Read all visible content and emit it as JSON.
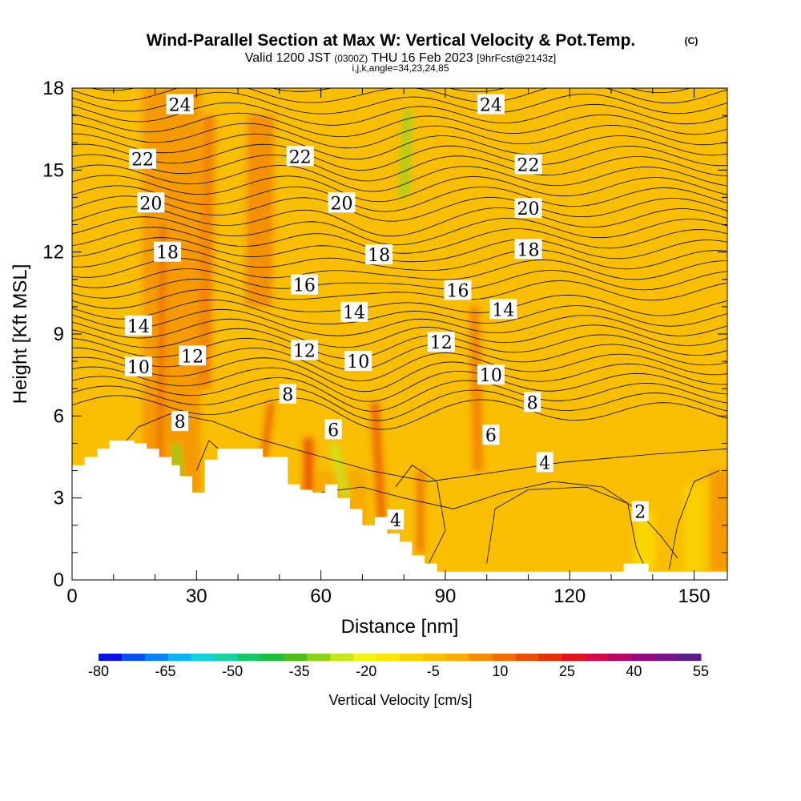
{
  "header": {
    "title": "Wind-Parallel Section at Max W: Vertical Velocity & Pot.Temp.",
    "copyright": "(C)",
    "valid_prefix": "Valid 1200 JST",
    "valid_utc": "(0300Z)",
    "valid_date": "THU 16 Feb 2023",
    "forecast_info": "[9hrFcst@2143z]",
    "grid_info": "i,j,k,angle=34,23,24,85"
  },
  "chart_data": {
    "type": "heatmap",
    "xlabel": "Distance [nm]",
    "ylabel": "Height [Kft MSL]",
    "xlim": [
      0,
      158
    ],
    "ylim": [
      0,
      18
    ],
    "x_ticks": [
      "0",
      "30",
      "60",
      "90",
      "120",
      "150"
    ],
    "x_tick_values": [
      0,
      30,
      60,
      90,
      120,
      150
    ],
    "y_ticks": [
      "0",
      "3",
      "6",
      "9",
      "12",
      "15",
      "18"
    ],
    "y_tick_values": [
      0,
      3,
      6,
      9,
      12,
      15,
      18
    ],
    "colorbar": {
      "label": "Vertical Velocity [cm/s]",
      "tick_labels": [
        "-80",
        "-65",
        "-50",
        "-35",
        "-20",
        "-5",
        "10",
        "25",
        "40",
        "55"
      ],
      "tick_values": [
        -80,
        -65,
        -50,
        -35,
        -20,
        -5,
        10,
        25,
        40,
        55
      ],
      "colors": [
        "#0a12e6",
        "#0a50f0",
        "#0a82f5",
        "#0ab4f0",
        "#14d2dc",
        "#19d2a0",
        "#19c864",
        "#1ebe3c",
        "#4bbe19",
        "#8cd219",
        "#c8e61e",
        "#f0f514",
        "#fae600",
        "#fad200",
        "#fabe00",
        "#faaa00",
        "#f58c00",
        "#f06e00",
        "#eb5000",
        "#e63200",
        "#e1141e",
        "#d20a46",
        "#b40a64",
        "#960a7d",
        "#78148c",
        "#5a1e8c"
      ]
    },
    "background_level": "-5 to 10 cm/s",
    "contour_variable": "Potential temperature",
    "contour_labels": [
      {
        "text": "24",
        "x": 26,
        "y": 17.4
      },
      {
        "text": "24",
        "x": 101,
        "y": 17.4
      },
      {
        "text": "22",
        "x": 17,
        "y": 15.4
      },
      {
        "text": "22",
        "x": 55,
        "y": 15.5
      },
      {
        "text": "22",
        "x": 110,
        "y": 15.2
      },
      {
        "text": "20",
        "x": 19,
        "y": 13.8
      },
      {
        "text": "20",
        "x": 65,
        "y": 13.8
      },
      {
        "text": "20",
        "x": 110,
        "y": 13.6
      },
      {
        "text": "18",
        "x": 23,
        "y": 12.0
      },
      {
        "text": "18",
        "x": 74,
        "y": 11.9
      },
      {
        "text": "18",
        "x": 110,
        "y": 12.1
      },
      {
        "text": "16",
        "x": 56,
        "y": 10.8
      },
      {
        "text": "16",
        "x": 93,
        "y": 10.6
      },
      {
        "text": "14",
        "x": 16,
        "y": 9.3
      },
      {
        "text": "14",
        "x": 68,
        "y": 9.8
      },
      {
        "text": "14",
        "x": 104,
        "y": 9.9
      },
      {
        "text": "12",
        "x": 29,
        "y": 8.2
      },
      {
        "text": "12",
        "x": 56,
        "y": 8.4
      },
      {
        "text": "12",
        "x": 89,
        "y": 8.7
      },
      {
        "text": "10",
        "x": 16,
        "y": 7.8
      },
      {
        "text": "10",
        "x": 69,
        "y": 8.0
      },
      {
        "text": "10",
        "x": 101,
        "y": 7.5
      },
      {
        "text": "8",
        "x": 26,
        "y": 5.8
      },
      {
        "text": "8",
        "x": 52,
        "y": 6.8
      },
      {
        "text": "8",
        "x": 111,
        "y": 6.5
      },
      {
        "text": "6",
        "x": 63,
        "y": 5.5
      },
      {
        "text": "6",
        "x": 101,
        "y": 5.3
      },
      {
        "text": "4",
        "x": 78,
        "y": 2.2
      },
      {
        "text": "4",
        "x": 114,
        "y": 4.3
      },
      {
        "text": "2",
        "x": 137,
        "y": 2.5
      }
    ]
  }
}
